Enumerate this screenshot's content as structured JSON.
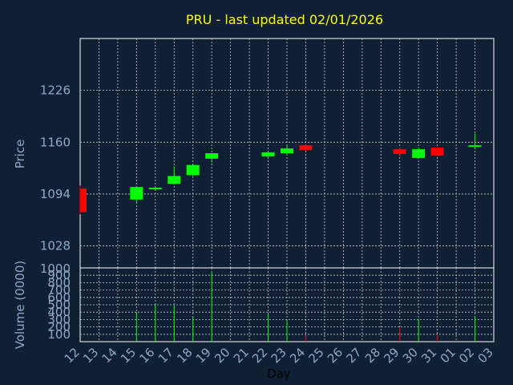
{
  "chart_data": {
    "type": "candlestick",
    "title": "PRU - last updated 02/01/2026",
    "xlabel": "Day",
    "price_panel": {
      "ylabel": "Price",
      "ylim": [
        1000,
        1292
      ],
      "yticks": [
        1028,
        1094,
        1160,
        1226
      ],
      "grid": true
    },
    "volume_panel": {
      "ylabel": "Volume (0000)",
      "ylim": [
        0,
        1000
      ],
      "yticks": [
        100,
        200,
        300,
        400,
        500,
        600,
        700,
        800,
        900
      ],
      "bottom_tick": "1000",
      "grid": true
    },
    "x_tick_labels": [
      "12",
      "13",
      "14",
      "15",
      "16",
      "17",
      "18",
      "19",
      "20",
      "21",
      "22",
      "23",
      "24",
      "25",
      "26",
      "27",
      "28",
      "29",
      "30",
      "31",
      "01",
      "02",
      "03"
    ],
    "colors": {
      "up": "#00ff00",
      "down": "#ff0000",
      "background": "#0f2034",
      "grid": "#c8c8c8",
      "title": "#ffff00",
      "text": "#8fa8c8"
    },
    "candles": [
      {
        "x": 0,
        "open": 1101,
        "high": 1105,
        "low": 1068,
        "close": 1071,
        "volume": 0
      },
      {
        "x": 3,
        "open": 1087,
        "high": 1104,
        "low": 1083,
        "close": 1103,
        "volume": 400
      },
      {
        "x": 4,
        "open": 1100,
        "high": 1103,
        "low": 1098,
        "close": 1102,
        "volume": 510
      },
      {
        "x": 5,
        "open": 1107,
        "high": 1129,
        "low": 1106,
        "close": 1117,
        "volume": 490
      },
      {
        "x": 6,
        "open": 1118,
        "high": 1132,
        "low": 1117,
        "close": 1131,
        "volume": 330
      },
      {
        "x": 7,
        "open": 1139,
        "high": 1146,
        "low": 1134,
        "close": 1146,
        "volume": 950
      },
      {
        "x": 10,
        "open": 1142,
        "high": 1148,
        "low": 1141,
        "close": 1147,
        "volume": 370
      },
      {
        "x": 11,
        "open": 1146,
        "high": 1156,
        "low": 1143,
        "close": 1152,
        "volume": 280
      },
      {
        "x": 12,
        "open": 1156,
        "high": 1157,
        "low": 1149,
        "close": 1150,
        "volume": 80
      },
      {
        "x": 17,
        "open": 1151,
        "high": 1153,
        "low": 1142,
        "close": 1145,
        "volume": 190
      },
      {
        "x": 18,
        "open": 1140,
        "high": 1153,
        "low": 1139,
        "close": 1151,
        "volume": 310
      },
      {
        "x": 19,
        "open": 1153,
        "high": 1154,
        "low": 1142,
        "close": 1143,
        "volume": 90
      },
      {
        "x": 21,
        "open": 1154,
        "high": 1171,
        "low": 1152,
        "close": 1156,
        "volume": 350
      }
    ]
  }
}
